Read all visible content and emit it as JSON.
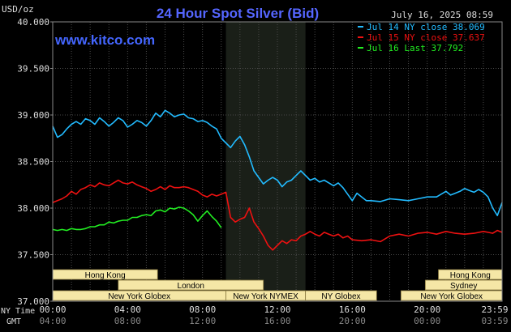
{
  "chart_data": {
    "type": "line",
    "title": "24 Hour Spot Silver (Bid)",
    "watermark": "www.kitco.com",
    "ylabel": "USD/oz",
    "date_label": "July 16, 2025 08:59",
    "ylim": [
      37.0,
      40.0
    ],
    "yticks": [
      "40.000",
      "39.500",
      "39.000",
      "38.500",
      "38.000",
      "37.500",
      "37.000"
    ],
    "ytick_values": [
      40.0,
      39.5,
      39.0,
      38.5,
      38.0,
      37.5,
      37.0
    ],
    "xlim": [
      0,
      24
    ],
    "x_axis_label_ny": "NY Time",
    "x_axis_label_gmt": "GMT",
    "xticks_ny": [
      "00:00",
      "04:00",
      "08:00",
      "12:00",
      "16:00",
      "20:00",
      "23:59"
    ],
    "xticks_gmt": [
      "04:00",
      "08:00",
      "12:00",
      "16:00",
      "20:00",
      "00:00",
      "03:59"
    ],
    "xtick_values": [
      0,
      4,
      8,
      12,
      16,
      20,
      24
    ],
    "shaded_region": [
      9.25,
      13.5
    ],
    "grid": true,
    "legend_placement": "top-right",
    "series": [
      {
        "name": "Jul 14 NY close 38.069",
        "color": "#22bbff",
        "x": [
          0,
          0.25,
          0.5,
          0.75,
          1,
          1.25,
          1.5,
          1.75,
          2,
          2.25,
          2.5,
          2.75,
          3,
          3.25,
          3.5,
          3.75,
          4,
          4.25,
          4.5,
          4.75,
          5,
          5.25,
          5.5,
          5.75,
          6,
          6.25,
          6.5,
          6.75,
          7,
          7.25,
          7.5,
          7.75,
          8,
          8.25,
          8.5,
          8.75,
          9,
          9.25,
          9.5,
          9.75,
          10,
          10.25,
          10.5,
          10.75,
          11,
          11.25,
          11.5,
          11.75,
          12,
          12.25,
          12.5,
          12.75,
          13,
          13.25,
          13.5,
          13.75,
          14,
          14.25,
          14.5,
          14.75,
          15,
          15.25,
          15.5,
          15.75,
          16,
          16.25,
          16.5,
          16.75,
          17,
          17.5,
          18,
          18.5,
          19,
          19.5,
          20,
          20.5,
          21,
          21.25,
          21.5,
          21.75,
          22,
          22.25,
          22.5,
          22.75,
          23,
          23.25,
          23.5,
          23.75,
          24
        ],
        "y": [
          38.88,
          38.76,
          38.79,
          38.85,
          38.9,
          38.93,
          38.9,
          38.96,
          38.94,
          38.9,
          38.97,
          38.93,
          38.88,
          38.92,
          38.97,
          38.94,
          38.87,
          38.9,
          38.94,
          38.92,
          38.88,
          38.94,
          39.02,
          38.98,
          39.05,
          39.02,
          38.98,
          39.0,
          39.01,
          38.97,
          38.96,
          38.93,
          38.94,
          38.92,
          38.88,
          38.85,
          38.75,
          38.7,
          38.65,
          38.72,
          38.77,
          38.68,
          38.55,
          38.4,
          38.33,
          38.26,
          38.3,
          38.33,
          38.3,
          38.23,
          38.28,
          38.3,
          38.35,
          38.4,
          38.35,
          38.3,
          38.32,
          38.28,
          38.3,
          38.27,
          38.24,
          38.27,
          38.22,
          38.15,
          38.08,
          38.16,
          38.12,
          38.08,
          38.08,
          38.07,
          38.1,
          38.09,
          38.08,
          38.1,
          38.12,
          38.12,
          38.18,
          38.14,
          38.16,
          38.18,
          38.21,
          38.19,
          38.17,
          38.2,
          38.17,
          38.12,
          38.0,
          37.92,
          38.06
        ]
      },
      {
        "name": "Jul 15 NY close 37.637",
        "color": "#ee1111",
        "x": [
          0,
          0.25,
          0.5,
          0.75,
          1,
          1.25,
          1.5,
          1.75,
          2,
          2.25,
          2.5,
          2.75,
          3,
          3.25,
          3.5,
          3.75,
          4,
          4.25,
          4.5,
          4.75,
          5,
          5.25,
          5.5,
          5.75,
          6,
          6.25,
          6.5,
          6.75,
          7,
          7.25,
          7.5,
          7.75,
          8,
          8.25,
          8.5,
          8.75,
          9,
          9.25,
          9.5,
          9.75,
          10,
          10.25,
          10.5,
          10.75,
          11,
          11.25,
          11.5,
          11.75,
          12,
          12.25,
          12.5,
          12.75,
          13,
          13.25,
          13.5,
          13.75,
          14,
          14.25,
          14.5,
          14.75,
          15,
          15.25,
          15.5,
          15.75,
          16,
          16.5,
          17,
          17.5,
          18,
          18.5,
          19,
          19.5,
          20,
          20.5,
          21,
          21.5,
          22,
          22.5,
          23,
          23.25,
          23.5,
          23.75,
          24
        ],
        "y": [
          38.06,
          38.08,
          38.1,
          38.13,
          38.18,
          38.15,
          38.2,
          38.22,
          38.25,
          38.23,
          38.27,
          38.25,
          38.24,
          38.27,
          38.3,
          38.27,
          38.26,
          38.28,
          38.25,
          38.23,
          38.21,
          38.18,
          38.2,
          38.23,
          38.2,
          38.24,
          38.22,
          38.22,
          38.23,
          38.22,
          38.2,
          38.18,
          38.14,
          38.12,
          38.15,
          38.13,
          38.15,
          38.17,
          37.9,
          37.85,
          37.88,
          37.9,
          38.0,
          37.85,
          37.78,
          37.7,
          37.6,
          37.55,
          37.6,
          37.65,
          37.62,
          37.66,
          37.65,
          37.7,
          37.72,
          37.75,
          37.72,
          37.7,
          37.74,
          37.72,
          37.7,
          37.72,
          37.68,
          37.7,
          37.66,
          37.65,
          37.66,
          37.64,
          37.7,
          37.72,
          37.7,
          37.73,
          37.74,
          37.72,
          37.75,
          37.73,
          37.72,
          37.73,
          37.75,
          37.74,
          37.73,
          37.76,
          37.74
        ]
      },
      {
        "name": "Jul 16 Last 37.792",
        "color": "#22ee22",
        "x": [
          0,
          0.25,
          0.5,
          0.75,
          1,
          1.25,
          1.5,
          1.75,
          2,
          2.25,
          2.5,
          2.75,
          3,
          3.25,
          3.5,
          3.75,
          4,
          4.25,
          4.5,
          4.75,
          5,
          5.25,
          5.5,
          5.75,
          6,
          6.25,
          6.5,
          6.75,
          7,
          7.25,
          7.5,
          7.75,
          8,
          8.25,
          8.5,
          8.75,
          9
        ],
        "y": [
          37.77,
          37.76,
          37.77,
          37.76,
          37.78,
          37.77,
          37.77,
          37.78,
          37.8,
          37.8,
          37.82,
          37.82,
          37.85,
          37.84,
          37.86,
          37.87,
          37.87,
          37.9,
          37.9,
          37.92,
          37.93,
          37.92,
          37.97,
          37.98,
          37.96,
          38.0,
          37.99,
          38.01,
          38.0,
          37.97,
          37.93,
          37.86,
          37.92,
          37.97,
          37.91,
          37.86,
          37.79
        ]
      }
    ],
    "sessions": {
      "top_row": [
        {
          "label": "Hong Kong",
          "start": 0.0,
          "end": 5.6
        },
        {
          "label": "Hong Kong",
          "start": 20.6,
          "end": 24.0
        }
      ],
      "middle_row": [
        {
          "label": "London",
          "start": 3.5,
          "end": 11.25
        },
        {
          "label": "Sydney",
          "start": 19.9,
          "end": 24.0
        }
      ],
      "bottom_row": [
        {
          "label": "New York Globex",
          "start": 0.0,
          "end": 9.25
        },
        {
          "label": "New York NYMEX",
          "start": 9.25,
          "end": 13.5
        },
        {
          "label": "NY Globex",
          "start": 13.5,
          "end": 17.3
        },
        {
          "label": "New York Globex",
          "start": 18.6,
          "end": 24.0
        }
      ]
    },
    "colors": {
      "background": "#000000",
      "plot": "#000000",
      "shade": "#1a1f18",
      "grid": "#4a4a4a",
      "text": "#dddddd",
      "title": "#5566ff",
      "watermark": "#4466ff",
      "session_fill": "#f5e7a6"
    }
  }
}
